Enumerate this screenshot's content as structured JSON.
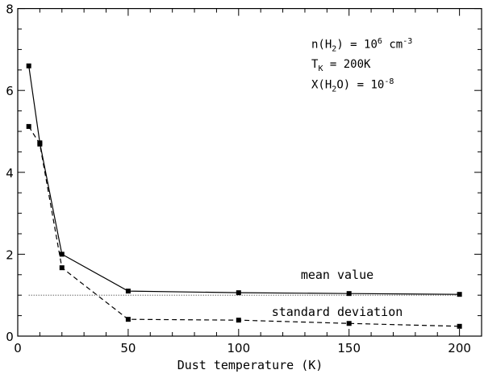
{
  "chart_data": {
    "type": "line",
    "title": "",
    "xlabel": "Dust temperature (K)",
    "ylabel": "",
    "xlim": [
      0,
      210
    ],
    "ylim": [
      0,
      8
    ],
    "xticks": [
      0,
      50,
      100,
      150,
      200
    ],
    "yticks": [
      0,
      2,
      4,
      6,
      8
    ],
    "grid": false,
    "series": [
      {
        "name": "mean value",
        "style": "solid",
        "marker": "square",
        "x": [
          5,
          10,
          20,
          50,
          100,
          150,
          200
        ],
        "y": [
          6.6,
          4.72,
          2.0,
          1.1,
          1.06,
          1.04,
          1.02
        ]
      },
      {
        "name": "standard deviation",
        "style": "dashed",
        "marker": "square",
        "x": [
          5,
          10,
          20,
          50,
          100,
          150,
          200
        ],
        "y": [
          5.12,
          4.69,
          1.67,
          0.41,
          0.39,
          0.31,
          0.24
        ]
      }
    ],
    "reference_line": {
      "y": 1.0,
      "style": "dotted"
    },
    "annotation": {
      "line1": {
        "pre": "n(H",
        "sub": "2",
        "mid": ") = 10",
        "sup": "6",
        "post": " cm",
        "sup2": "-3"
      },
      "line2": {
        "pre": "T",
        "sub": "K",
        "post": " = 200K"
      },
      "line3": {
        "pre": "X(H",
        "sub": "2",
        "mid": "O) = 10",
        "sup": "-8"
      }
    },
    "labels": {
      "mean": "mean value",
      "std": "standard deviation"
    }
  }
}
